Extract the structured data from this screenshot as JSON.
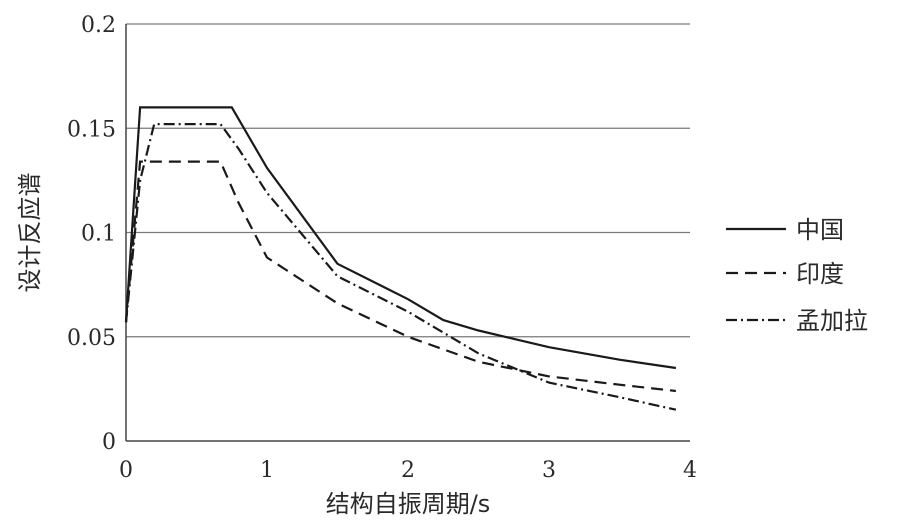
{
  "chart_data": {
    "type": "line",
    "title": "",
    "xlabel": "结构自振周期/s",
    "ylabel": "设计反应谱",
    "xlim": [
      0,
      4
    ],
    "ylim": [
      0,
      0.2
    ],
    "x_ticks": [
      "0",
      "1",
      "2",
      "3",
      "4"
    ],
    "y_ticks": [
      "0",
      "0.05",
      "0.1",
      "0.15",
      "0.2"
    ],
    "grid": "horizontal",
    "legend_position": "right",
    "series": [
      {
        "name": "中国",
        "style": "solid",
        "color": "#1a1a1a",
        "x": [
          0,
          0.1,
          0.2,
          0.4,
          0.6,
          0.75,
          1.0,
          1.5,
          2.0,
          2.25,
          2.5,
          3.0,
          3.5,
          3.9
        ],
        "y": [
          0.057,
          0.16,
          0.16,
          0.16,
          0.16,
          0.16,
          0.131,
          0.085,
          0.068,
          0.058,
          0.053,
          0.045,
          0.039,
          0.035
        ]
      },
      {
        "name": "印度",
        "style": "dashed",
        "color": "#1a1a1a",
        "x": [
          0,
          0.1,
          0.2,
          0.4,
          0.67,
          0.8,
          1.0,
          1.5,
          2.0,
          2.5,
          3.0,
          3.5,
          3.9
        ],
        "y": [
          0.057,
          0.134,
          0.134,
          0.134,
          0.134,
          0.114,
          0.088,
          0.066,
          0.05,
          0.038,
          0.031,
          0.027,
          0.024
        ]
      },
      {
        "name": "孟加拉",
        "style": "dash-dot",
        "color": "#1a1a1a",
        "x": [
          0,
          0.1,
          0.2,
          0.4,
          0.67,
          0.8,
          1.0,
          1.5,
          2.0,
          2.5,
          3.0,
          3.5,
          3.9
        ],
        "y": [
          0.057,
          0.125,
          0.152,
          0.152,
          0.152,
          0.14,
          0.119,
          0.079,
          0.062,
          0.042,
          0.028,
          0.021,
          0.015
        ]
      }
    ]
  }
}
